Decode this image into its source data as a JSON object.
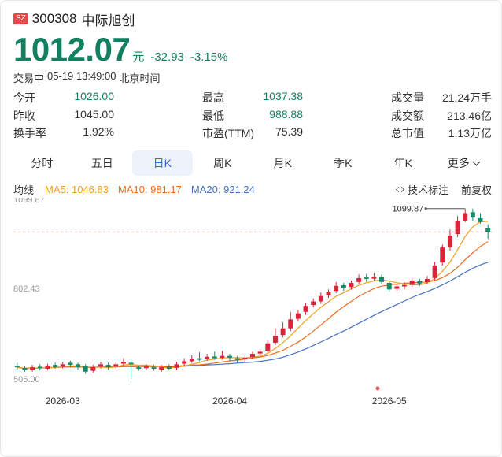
{
  "stock": {
    "market": "SZ",
    "code": "300308",
    "name": "中际旭创",
    "price": "1012.07",
    "unit": "元",
    "change": "-32.93",
    "change_pct": "-3.15%",
    "status": "交易中",
    "time": "05-19 13:49:00",
    "tz": "北京时间"
  },
  "stats": [
    [
      {
        "label": "今开",
        "value": "1026.00",
        "color": "green"
      },
      {
        "label": "最高",
        "value": "1037.38",
        "color": "green"
      },
      {
        "label": "成交量",
        "value": "21.24万手",
        "color": "dark"
      }
    ],
    [
      {
        "label": "昨收",
        "value": "1045.00",
        "color": "dark"
      },
      {
        "label": "最低",
        "value": "988.88",
        "color": "green"
      },
      {
        "label": "成交额",
        "value": "213.46亿",
        "color": "dark"
      }
    ],
    [
      {
        "label": "换手率",
        "value": "1.92%",
        "color": "dark"
      },
      {
        "label": "市盈(TTM)",
        "value": "75.39",
        "color": "dark"
      },
      {
        "label": "总市值",
        "value": "1.13万亿",
        "color": "dark"
      }
    ]
  ],
  "tabs": [
    "分时",
    "五日",
    "日K",
    "周K",
    "月K",
    "季K",
    "年K",
    "更多"
  ],
  "active_tab": "日K",
  "indicators": {
    "label": "均线",
    "ma5": "MA5: 1046.83",
    "ma10": "MA10: 981.17",
    "ma20": "MA20: 921.24",
    "tech": "技术标注",
    "adjust": "前复权"
  },
  "colors": {
    "up": "#d9253b",
    "down": "#178a6a",
    "ma5": "#f0a020",
    "ma10": "#ee6b1e",
    "ma20": "#4472c4"
  },
  "chart_data": {
    "type": "candlestick",
    "y_ticks": [
      "1099.87",
      "802.43",
      "505.00"
    ],
    "ylim": [
      505.0,
      1099.87
    ],
    "x_ticks": [
      {
        "label": "2026-03",
        "index": 6
      },
      {
        "label": "2026-04",
        "index": 28
      },
      {
        "label": "2026-05",
        "index": 49
      }
    ],
    "high_marker": "1099.87",
    "current_price": 1012.07,
    "candles": [
      [
        565,
        560,
        575,
        552
      ],
      [
        558,
        552,
        565,
        545
      ],
      [
        550,
        560,
        568,
        545
      ],
      [
        562,
        558,
        570,
        550
      ],
      [
        555,
        565,
        572,
        550
      ],
      [
        568,
        560,
        575,
        555
      ],
      [
        562,
        570,
        578,
        556
      ],
      [
        575,
        568,
        582,
        560
      ],
      [
        570,
        560,
        575,
        552
      ],
      [
        565,
        545,
        570,
        538
      ],
      [
        548,
        560,
        568,
        542
      ],
      [
        562,
        570,
        578,
        556
      ],
      [
        568,
        560,
        575,
        552
      ],
      [
        562,
        570,
        578,
        556
      ],
      [
        572,
        578,
        590,
        565
      ],
      [
        575,
        570,
        582,
        520
      ],
      [
        560,
        555,
        565,
        548
      ],
      [
        557,
        562,
        570,
        550
      ],
      [
        560,
        555,
        568,
        548
      ],
      [
        552,
        560,
        568,
        545
      ],
      [
        562,
        555,
        570,
        550
      ],
      [
        558,
        570,
        578,
        550
      ],
      [
        572,
        580,
        590,
        565
      ],
      [
        580,
        588,
        600,
        575
      ],
      [
        590,
        585,
        610,
        580
      ],
      [
        588,
        595,
        605,
        582
      ],
      [
        596,
        590,
        612,
        585
      ],
      [
        592,
        598,
        615,
        585
      ],
      [
        598,
        592,
        605,
        580
      ],
      [
        590,
        585,
        598,
        575
      ],
      [
        586,
        592,
        600,
        578
      ],
      [
        594,
        605,
        612,
        588
      ],
      [
        606,
        612,
        620,
        600
      ],
      [
        615,
        640,
        650,
        608
      ],
      [
        642,
        665,
        690,
        635
      ],
      [
        668,
        690,
        710,
        660
      ],
      [
        690,
        720,
        745,
        680
      ],
      [
        722,
        740,
        752,
        712
      ],
      [
        745,
        765,
        775,
        735
      ],
      [
        768,
        780,
        790,
        760
      ],
      [
        780,
        798,
        810,
        772
      ],
      [
        800,
        812,
        820,
        792
      ],
      [
        815,
        832,
        845,
        808
      ],
      [
        834,
        825,
        842,
        815
      ],
      [
        828,
        842,
        850,
        820
      ],
      [
        845,
        858,
        870,
        838
      ],
      [
        860,
        855,
        872,
        845
      ],
      [
        856,
        862,
        875,
        848
      ],
      [
        862,
        845,
        870,
        838
      ],
      [
        842,
        820,
        850,
        812
      ],
      [
        822,
        830,
        838,
        815
      ],
      [
        830,
        835,
        845,
        820
      ],
      [
        835,
        850,
        860,
        828
      ],
      [
        848,
        840,
        855,
        832
      ],
      [
        845,
        855,
        865,
        838
      ],
      [
        858,
        900,
        912,
        850
      ],
      [
        910,
        960,
        970,
        900
      ],
      [
        960,
        1000,
        1020,
        950
      ],
      [
        1005,
        1050,
        1065,
        995
      ],
      [
        1050,
        1075,
        1090,
        1045
      ],
      [
        1078,
        1060,
        1090,
        1050
      ],
      [
        1058,
        1045,
        1075,
        1040
      ],
      [
        1026,
        1012,
        1037.38,
        988.88
      ]
    ]
  }
}
